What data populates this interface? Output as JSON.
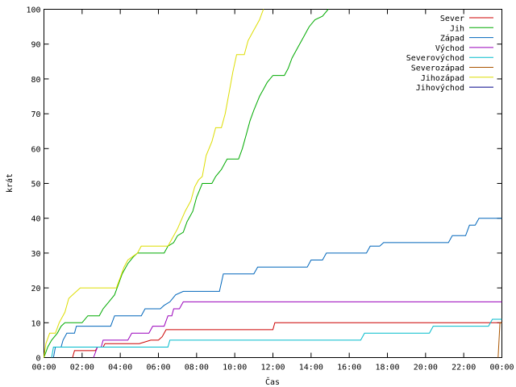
{
  "chart_data": {
    "type": "line",
    "title": "",
    "xlabel": "Čas",
    "ylabel": "krát",
    "xlim": [
      0,
      24
    ],
    "ylim": [
      0,
      100
    ],
    "x_ticks": [
      {
        "value": 0,
        "label": "00:00"
      },
      {
        "value": 2,
        "label": "02:00"
      },
      {
        "value": 4,
        "label": "04:00"
      },
      {
        "value": 6,
        "label": "06:00"
      },
      {
        "value": 8,
        "label": "08:00"
      },
      {
        "value": 10,
        "label": "10:00"
      },
      {
        "value": 12,
        "label": "12:00"
      },
      {
        "value": 14,
        "label": "14:00"
      },
      {
        "value": 16,
        "label": "16:00"
      },
      {
        "value": 18,
        "label": "18:00"
      },
      {
        "value": 20,
        "label": "20:00"
      },
      {
        "value": 22,
        "label": "22:00"
      },
      {
        "value": 24,
        "label": "00:00"
      }
    ],
    "y_ticks": [
      0,
      10,
      20,
      30,
      40,
      50,
      60,
      70,
      80,
      90,
      100
    ],
    "grid": false,
    "legend_position": "top-right",
    "series": [
      {
        "name": "Sever",
        "color": "#cc0000",
        "points": [
          [
            1.5,
            0
          ],
          [
            1.6,
            2
          ],
          [
            2.7,
            2
          ],
          [
            2.8,
            3
          ],
          [
            3.1,
            3
          ],
          [
            3.2,
            4
          ],
          [
            5.0,
            4
          ],
          [
            5.6,
            5
          ],
          [
            6.0,
            5
          ],
          [
            6.2,
            6
          ],
          [
            6.4,
            8
          ],
          [
            12.0,
            8
          ],
          [
            12.1,
            10
          ],
          [
            24,
            10
          ]
        ]
      },
      {
        "name": "Jih",
        "color": "#00aa00",
        "points": [
          [
            0,
            0
          ],
          [
            0.2,
            3
          ],
          [
            0.4,
            5
          ],
          [
            0.7,
            7
          ],
          [
            0.9,
            9
          ],
          [
            1.1,
            10
          ],
          [
            2.0,
            10
          ],
          [
            2.3,
            12
          ],
          [
            2.9,
            12
          ],
          [
            3.1,
            14
          ],
          [
            3.4,
            16
          ],
          [
            3.7,
            18
          ],
          [
            3.9,
            21
          ],
          [
            4.1,
            24
          ],
          [
            4.4,
            27
          ],
          [
            4.7,
            29
          ],
          [
            4.9,
            30
          ],
          [
            6.3,
            30
          ],
          [
            6.5,
            32
          ],
          [
            6.8,
            33
          ],
          [
            7.0,
            35
          ],
          [
            7.3,
            36
          ],
          [
            7.5,
            39
          ],
          [
            7.8,
            42
          ],
          [
            8.0,
            46
          ],
          [
            8.3,
            50
          ],
          [
            8.8,
            50
          ],
          [
            9.0,
            52
          ],
          [
            9.3,
            54
          ],
          [
            9.6,
            57
          ],
          [
            10.2,
            57
          ],
          [
            10.4,
            60
          ],
          [
            10.6,
            64
          ],
          [
            10.8,
            68
          ],
          [
            11.0,
            71
          ],
          [
            11.3,
            75
          ],
          [
            11.5,
            77
          ],
          [
            11.7,
            79
          ],
          [
            12.0,
            81
          ],
          [
            12.6,
            81
          ],
          [
            12.8,
            83
          ],
          [
            13.0,
            86
          ],
          [
            13.3,
            89
          ],
          [
            13.6,
            92
          ],
          [
            13.9,
            95
          ],
          [
            14.2,
            97
          ],
          [
            14.6,
            98
          ],
          [
            14.9,
            100
          ]
        ]
      },
      {
        "name": "Západ",
        "color": "#0066bb",
        "points": [
          [
            0.5,
            0
          ],
          [
            0.6,
            3
          ],
          [
            0.9,
            3
          ],
          [
            1.0,
            5
          ],
          [
            1.2,
            7
          ],
          [
            1.6,
            7
          ],
          [
            1.7,
            9
          ],
          [
            3.5,
            9
          ],
          [
            3.7,
            12
          ],
          [
            5.1,
            12
          ],
          [
            5.3,
            14
          ],
          [
            6.1,
            14
          ],
          [
            6.3,
            15
          ],
          [
            6.6,
            16
          ],
          [
            6.9,
            18
          ],
          [
            7.3,
            19
          ],
          [
            9.2,
            19
          ],
          [
            9.4,
            24
          ],
          [
            11.0,
            24
          ],
          [
            11.2,
            26
          ],
          [
            13.8,
            26
          ],
          [
            14.0,
            28
          ],
          [
            14.6,
            28
          ],
          [
            14.8,
            30
          ],
          [
            16.9,
            30
          ],
          [
            17.1,
            32
          ],
          [
            17.6,
            32
          ],
          [
            17.8,
            33
          ],
          [
            21.2,
            33
          ],
          [
            21.4,
            35
          ],
          [
            22.1,
            35
          ],
          [
            22.3,
            38
          ],
          [
            22.6,
            38
          ],
          [
            22.8,
            40
          ],
          [
            24,
            40
          ]
        ]
      },
      {
        "name": "Východ",
        "color": "#9900bb",
        "points": [
          [
            2.6,
            0
          ],
          [
            2.8,
            3
          ],
          [
            3.0,
            3
          ],
          [
            3.1,
            5
          ],
          [
            4.4,
            5
          ],
          [
            4.6,
            7
          ],
          [
            5.5,
            7
          ],
          [
            5.7,
            9
          ],
          [
            6.3,
            9
          ],
          [
            6.5,
            12
          ],
          [
            6.7,
            12
          ],
          [
            6.8,
            14
          ],
          [
            7.1,
            14
          ],
          [
            7.3,
            16
          ],
          [
            24,
            16
          ]
        ]
      },
      {
        "name": "Severovýchod",
        "color": "#00bbcc",
        "points": [
          [
            0.4,
            0
          ],
          [
            0.5,
            3
          ],
          [
            6.5,
            3
          ],
          [
            6.6,
            5
          ],
          [
            16.6,
            5
          ],
          [
            16.8,
            7
          ],
          [
            20.2,
            7
          ],
          [
            20.4,
            9
          ],
          [
            23.3,
            9
          ],
          [
            23.5,
            11
          ],
          [
            24,
            11
          ]
        ]
      },
      {
        "name": "Severozápad",
        "color": "#aa5500",
        "points": [
          [
            23.8,
            0
          ],
          [
            23.9,
            10
          ],
          [
            24,
            10
          ]
        ]
      },
      {
        "name": "Jihozápad",
        "color": "#dddd00",
        "points": [
          [
            0,
            0
          ],
          [
            0.1,
            4
          ],
          [
            0.3,
            7
          ],
          [
            0.6,
            7
          ],
          [
            0.8,
            10
          ],
          [
            1.1,
            13
          ],
          [
            1.3,
            17
          ],
          [
            1.5,
            18
          ],
          [
            1.9,
            20
          ],
          [
            3.8,
            20
          ],
          [
            4.0,
            23
          ],
          [
            4.2,
            26
          ],
          [
            4.4,
            28
          ],
          [
            4.9,
            30
          ],
          [
            5.1,
            32
          ],
          [
            6.5,
            32
          ],
          [
            6.7,
            34
          ],
          [
            7.0,
            37
          ],
          [
            7.4,
            42
          ],
          [
            7.7,
            45
          ],
          [
            7.9,
            49
          ],
          [
            8.1,
            51
          ],
          [
            8.3,
            52
          ],
          [
            8.5,
            58
          ],
          [
            8.8,
            62
          ],
          [
            9.0,
            66
          ],
          [
            9.3,
            66
          ],
          [
            9.5,
            70
          ],
          [
            9.7,
            76
          ],
          [
            9.9,
            82
          ],
          [
            10.1,
            87
          ],
          [
            10.5,
            87
          ],
          [
            10.7,
            91
          ],
          [
            11.0,
            94
          ],
          [
            11.3,
            97
          ],
          [
            11.5,
            100
          ]
        ]
      },
      {
        "name": "Jihovýchod",
        "color": "#000088",
        "points": []
      }
    ]
  }
}
